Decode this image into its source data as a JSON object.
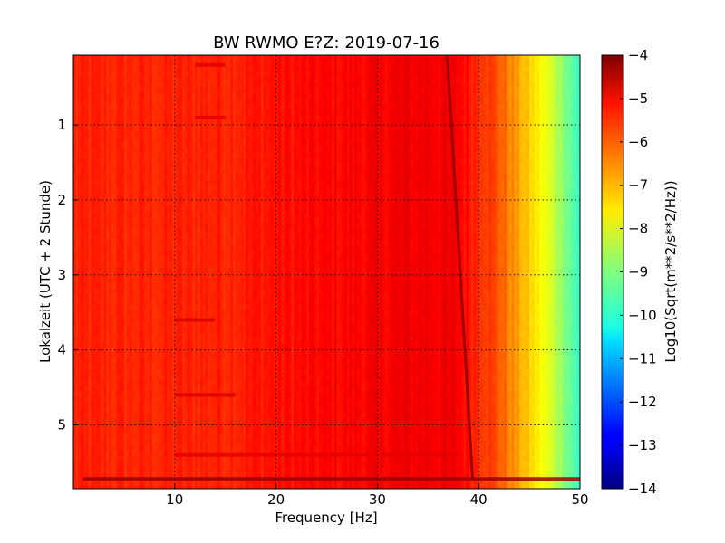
{
  "chart_data": {
    "type": "heatmap",
    "title": "BW RWMO E?Z: 2019-07-16",
    "xlabel": "Frequency [Hz]",
    "ylabel": "Lokalzeit (UTC + 2 Stunde)",
    "xlim": [
      0,
      50
    ],
    "ylim": [
      5.85,
      0.07
    ],
    "x_ticks": [
      10,
      20,
      30,
      40,
      50
    ],
    "y_ticks": [
      1,
      2,
      3,
      4,
      5
    ],
    "grid": true,
    "colormap": "jet",
    "colorbar": {
      "label": "Log10(Sqrt(m**2/s**2/Hz))",
      "range": [
        -14,
        -4
      ],
      "ticks": [
        -4,
        -5,
        -6,
        -7,
        -8,
        -9,
        -10,
        -11,
        -12,
        -13,
        -14
      ]
    },
    "spectrum_profile": {
      "frequency_hz": [
        0,
        5,
        10,
        15,
        20,
        25,
        30,
        35,
        38,
        40,
        41,
        42,
        43,
        44,
        45,
        46,
        47,
        48,
        49,
        50
      ],
      "log10_amplitude": [
        -5.6,
        -5.6,
        -5.6,
        -5.55,
        -5.4,
        -5.3,
        -5.2,
        -5.1,
        -5.2,
        -5.6,
        -5.8,
        -6.1,
        -6.5,
        -6.9,
        -7.3,
        -7.7,
        -8.1,
        -8.6,
        -9.2,
        -9.8
      ]
    },
    "tonal_line": {
      "start": {
        "frequency_hz": 36.9,
        "time_h": 0.07
      },
      "end": {
        "frequency_hz": 39.4,
        "time_h": 5.72
      },
      "log10_amplitude": -4.3
    },
    "horizontal_bands": [
      {
        "time_h": 0.2,
        "freq_range_hz": [
          12,
          15
        ],
        "log10_amplitude": -5.0
      },
      {
        "time_h": 0.9,
        "freq_range_hz": [
          12,
          15
        ],
        "log10_amplitude": -5.0
      },
      {
        "time_h": 3.6,
        "freq_range_hz": [
          10,
          14
        ],
        "log10_amplitude": -4.9
      },
      {
        "time_h": 4.6,
        "freq_range_hz": [
          10,
          16
        ],
        "log10_amplitude": -4.9
      },
      {
        "time_h": 5.4,
        "freq_range_hz": [
          10,
          38
        ],
        "log10_amplitude": -5.0
      },
      {
        "time_h": 5.72,
        "freq_range_hz": [
          1,
          50
        ],
        "log10_amplitude": -4.3
      }
    ]
  }
}
